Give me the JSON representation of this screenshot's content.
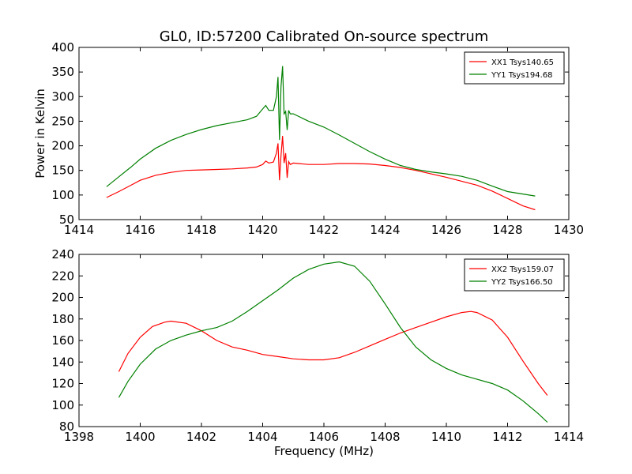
{
  "figure": {
    "title": "GL0, ID:57200 Calibrated On-source spectrum"
  },
  "chart_data": [
    {
      "type": "line",
      "ylabel": "Power in Kelvin",
      "xlabel": "",
      "xlim": [
        1414,
        1430
      ],
      "ylim": [
        50,
        400
      ],
      "xticks": [
        1414,
        1416,
        1418,
        1420,
        1422,
        1424,
        1426,
        1428,
        1430
      ],
      "yticks": [
        50,
        100,
        150,
        200,
        250,
        300,
        350,
        400
      ],
      "legend": "top-right",
      "grid": false,
      "series": [
        {
          "name": "XX1 Tsys140.65",
          "color": "#ff0000",
          "x": [
            1414.9,
            1415.3,
            1415.7,
            1416.0,
            1416.5,
            1417.0,
            1417.5,
            1418.0,
            1418.5,
            1419.0,
            1419.5,
            1419.8,
            1420.0,
            1420.1,
            1420.2,
            1420.35,
            1420.45,
            1420.5,
            1420.55,
            1420.6,
            1420.65,
            1420.7,
            1420.75,
            1420.8,
            1420.85,
            1420.9,
            1421.0,
            1421.5,
            1422.0,
            1422.5,
            1423.0,
            1423.5,
            1424.0,
            1424.5,
            1425.0,
            1425.5,
            1426.0,
            1426.5,
            1427.0,
            1427.5,
            1428.0,
            1428.5,
            1428.9
          ],
          "y": [
            95,
            107,
            120,
            130,
            140,
            146,
            150,
            151,
            152,
            153,
            155,
            157,
            162,
            169,
            165,
            167,
            185,
            205,
            130,
            180,
            220,
            165,
            185,
            135,
            168,
            162,
            165,
            162,
            162,
            164,
            164,
            163,
            160,
            156,
            150,
            143,
            136,
            128,
            120,
            108,
            93,
            78,
            70
          ]
        },
        {
          "name": "YY1 Tsys194.68",
          "color": "#008000",
          "x": [
            1414.9,
            1415.3,
            1415.7,
            1416.0,
            1416.5,
            1417.0,
            1417.5,
            1418.0,
            1418.5,
            1419.0,
            1419.5,
            1419.8,
            1420.0,
            1420.1,
            1420.2,
            1420.35,
            1420.45,
            1420.5,
            1420.55,
            1420.6,
            1420.65,
            1420.7,
            1420.75,
            1420.8,
            1420.85,
            1420.9,
            1421.0,
            1421.5,
            1422.0,
            1422.5,
            1423.0,
            1423.5,
            1424.0,
            1424.5,
            1425.0,
            1425.5,
            1426.0,
            1426.5,
            1427.0,
            1427.5,
            1428.0,
            1428.5,
            1428.9
          ],
          "y": [
            117,
            137,
            157,
            173,
            195,
            211,
            223,
            233,
            241,
            247,
            253,
            260,
            275,
            282,
            272,
            272,
            300,
            340,
            212,
            320,
            362,
            265,
            270,
            232,
            272,
            265,
            265,
            250,
            238,
            222,
            205,
            188,
            173,
            160,
            152,
            147,
            143,
            138,
            130,
            118,
            107,
            102,
            98
          ]
        }
      ]
    },
    {
      "type": "line",
      "ylabel": "",
      "xlabel": "Frequency (MHz)",
      "xlim": [
        1398,
        1414
      ],
      "ylim": [
        80,
        240
      ],
      "xticks": [
        1398,
        1400,
        1402,
        1404,
        1406,
        1408,
        1410,
        1412,
        1414
      ],
      "yticks": [
        80,
        100,
        120,
        140,
        160,
        180,
        200,
        220,
        240
      ],
      "legend": "top-right",
      "grid": false,
      "series": [
        {
          "name": "XX2 Tsys159.07",
          "color": "#ff0000",
          "x": [
            1399.3,
            1399.6,
            1400.0,
            1400.4,
            1400.8,
            1401.0,
            1401.5,
            1402.0,
            1402.5,
            1403.0,
            1403.5,
            1404.0,
            1404.5,
            1405.0,
            1405.5,
            1406.0,
            1406.5,
            1407.0,
            1407.5,
            1408.0,
            1408.5,
            1409.0,
            1409.5,
            1410.0,
            1410.5,
            1410.8,
            1411.0,
            1411.5,
            1412.0,
            1412.5,
            1413.0,
            1413.3
          ],
          "y": [
            131,
            148,
            163,
            173,
            177,
            178,
            176,
            169,
            160,
            154,
            151,
            147,
            145,
            143,
            142,
            142,
            144,
            149,
            155,
            161,
            167,
            172,
            177,
            182,
            186,
            187,
            186,
            179,
            163,
            141,
            120,
            109
          ]
        },
        {
          "name": "YY2 Tsys166.50",
          "color": "#008000",
          "x": [
            1399.3,
            1399.6,
            1400.0,
            1400.5,
            1401.0,
            1401.5,
            1402.0,
            1402.5,
            1403.0,
            1403.5,
            1404.0,
            1404.5,
            1405.0,
            1405.5,
            1406.0,
            1406.5,
            1407.0,
            1407.5,
            1408.0,
            1408.5,
            1409.0,
            1409.5,
            1410.0,
            1410.5,
            1411.0,
            1411.5,
            1412.0,
            1412.5,
            1413.0,
            1413.3
          ],
          "y": [
            107,
            122,
            138,
            152,
            160,
            165,
            169,
            172,
            178,
            187,
            197,
            207,
            218,
            226,
            231,
            233,
            229,
            215,
            194,
            172,
            154,
            142,
            134,
            128,
            124,
            120,
            114,
            104,
            92,
            84
          ]
        }
      ]
    }
  ]
}
